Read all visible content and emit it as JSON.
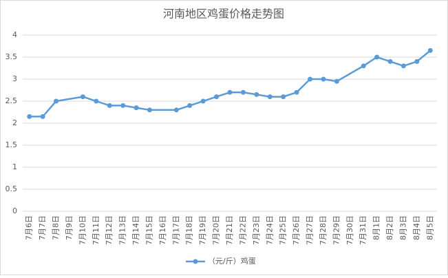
{
  "chart_data": {
    "type": "line",
    "title": "河南地区鸡蛋价格走势图",
    "categories": [
      "7月6日",
      "7月7日",
      "7月8日",
      "7月9日",
      "7月10日",
      "7月11日",
      "7月12日",
      "7月13日",
      "7月14日",
      "7月15日",
      "7月16日",
      "7月17日",
      "7月18日",
      "7月19日",
      "7月20日",
      "7月21日",
      "7月22日",
      "7月23日",
      "7月24日",
      "7月25日",
      "7月26日",
      "7月27日",
      "7月28日",
      "7月29日",
      "7月30日",
      "7月31日",
      "8月1日",
      "8月2日",
      "8月3日",
      "8月4日",
      "8月5日"
    ],
    "series": [
      {
        "name": "（元/斤）鸡蛋",
        "color": "#5b9bd5",
        "values": [
          2.15,
          2.15,
          2.5,
          null,
          2.6,
          2.5,
          2.4,
          2.4,
          2.35,
          2.3,
          null,
          2.3,
          2.4,
          2.5,
          2.6,
          2.7,
          2.7,
          2.65,
          2.6,
          2.6,
          2.7,
          3.0,
          3.0,
          2.95,
          null,
          3.3,
          3.5,
          3.4,
          3.3,
          3.4,
          3.65
        ]
      }
    ],
    "ylim": [
      0,
      4
    ],
    "yticks": [
      0,
      0.5,
      1,
      1.5,
      2,
      2.5,
      3,
      3.5,
      4
    ],
    "grid": true,
    "connect_gaps": true,
    "legend": "bottom"
  }
}
